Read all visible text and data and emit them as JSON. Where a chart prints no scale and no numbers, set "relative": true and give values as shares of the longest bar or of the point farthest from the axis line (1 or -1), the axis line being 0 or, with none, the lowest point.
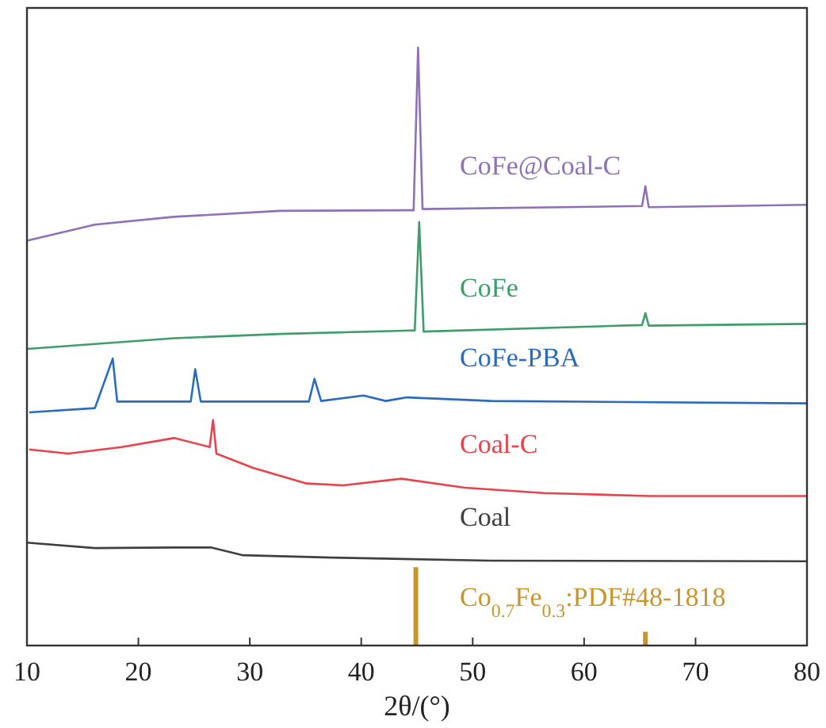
{
  "chart_data": {
    "type": "line",
    "relative": true,
    "xlabel": "2θ/(°)",
    "xlim": [
      10,
      80
    ],
    "xticks": [
      10,
      20,
      30,
      40,
      50,
      60,
      70,
      80
    ],
    "grid": false,
    "legend": false,
    "series": [
      {
        "name": "CoFe@Coal-C",
        "color": "#8e72b5",
        "x": [
          10,
          16.1,
          23.2,
          32.7,
          44.7,
          45.1,
          45.5,
          65.2,
          65.5,
          65.8,
          80
        ],
        "values": [
          0.677,
          0.704,
          0.717,
          0.727,
          0.728,
          1.0,
          0.73,
          0.735,
          0.768,
          0.733,
          0.737
        ]
      },
      {
        "name": "CoFe",
        "color": "#3e9d6a",
        "x": [
          10,
          23.2,
          32.7,
          44.8,
          45.2,
          45.6,
          65.2,
          65.5,
          65.8,
          80
        ],
        "values": [
          0.496,
          0.514,
          0.521,
          0.527,
          0.708,
          0.525,
          0.536,
          0.556,
          0.535,
          0.538
        ]
      },
      {
        "name": "CoFe-PBA",
        "color": "#2a6bbd",
        "x": [
          10.2,
          16.1,
          17.7,
          18.1,
          24.7,
          25.1,
          25.6,
          35.3,
          35.8,
          36.4,
          40.2,
          42.2,
          44.1,
          51.7,
          80
        ],
        "values": [
          0.39,
          0.397,
          0.48,
          0.408,
          0.408,
          0.462,
          0.408,
          0.408,
          0.446,
          0.409,
          0.418,
          0.409,
          0.415,
          0.409,
          0.405
        ]
      },
      {
        "name": "Coal-C",
        "color": "#e8434c",
        "x": [
          10.2,
          13.7,
          18.5,
          23.2,
          26.4,
          26.7,
          27.0,
          30.3,
          35.1,
          38.4,
          43.6,
          49.3,
          56.4,
          65.9,
          80
        ],
        "values": [
          0.328,
          0.321,
          0.332,
          0.347,
          0.332,
          0.377,
          0.321,
          0.297,
          0.271,
          0.268,
          0.279,
          0.264,
          0.255,
          0.25,
          0.25
        ]
      },
      {
        "name": "Coal",
        "color": "#404040",
        "x": [
          10,
          16.1,
          23.2,
          26.5,
          29.4,
          37.4,
          51.7,
          80
        ],
        "values": [
          0.172,
          0.163,
          0.164,
          0.164,
          0.151,
          0.147,
          0.142,
          0.141
        ]
      },
      {
        "name": "Co$_{0.7}$Fe$_{0.3}$:PDF#48-1818",
        "type": "bar",
        "color": "#c8962e",
        "x": [
          44.9,
          65.5
        ],
        "values": [
          0.131,
          0.023
        ]
      }
    ]
  }
}
